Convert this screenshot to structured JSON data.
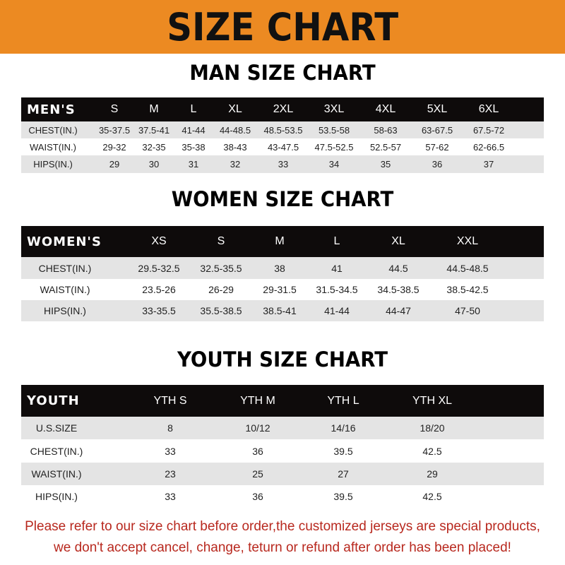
{
  "banner_title": "SIZE CHART",
  "men": {
    "title": "MAN SIZE CHART",
    "header": [
      "MEN'S",
      "S",
      "M",
      "L",
      "XL",
      "2XL",
      "3XL",
      "4XL",
      "5XL",
      "6XL"
    ],
    "rows": [
      [
        "CHEST(IN.)",
        "35-37.5",
        "37.5-41",
        "41-44",
        "44-48.5",
        "48.5-53.5",
        "53.5-58",
        "58-63",
        "63-67.5",
        "67.5-72"
      ],
      [
        "WAIST(IN.)",
        "29-32",
        "32-35",
        "35-38",
        "38-43",
        "43-47.5",
        "47.5-52.5",
        "52.5-57",
        "57-62",
        "62-66.5"
      ],
      [
        "HIPS(IN.)",
        "29",
        "30",
        "31",
        "32",
        "33",
        "34",
        "35",
        "36",
        "37"
      ]
    ]
  },
  "women": {
    "title": "WOMEN SIZE CHART",
    "header": [
      "WOMEN'S",
      "XS",
      "S",
      "M",
      "L",
      "XL",
      "XXL"
    ],
    "rows": [
      [
        "CHEST(IN.)",
        "29.5-32.5",
        "32.5-35.5",
        "38",
        "41",
        "44.5",
        "44.5-48.5"
      ],
      [
        "WAIST(IN.)",
        "23.5-26",
        "26-29",
        "29-31.5",
        "31.5-34.5",
        "34.5-38.5",
        "38.5-42.5"
      ],
      [
        "HIPS(IN.)",
        "33-35.5",
        "35.5-38.5",
        "38.5-41",
        "41-44",
        "44-47",
        "47-50"
      ]
    ]
  },
  "youth": {
    "title": "YOUTH SIZE CHART",
    "header": [
      "YOUTH",
      "YTH S",
      "YTH M",
      "YTH L",
      "YTH XL"
    ],
    "rows": [
      [
        "U.S.SIZE",
        "8",
        "10/12",
        "14/16",
        "18/20"
      ],
      [
        "CHEST(IN.)",
        "33",
        "36",
        "39.5",
        "42.5"
      ],
      [
        "WAIST(IN.)",
        "23",
        "25",
        "27",
        "29"
      ],
      [
        "HIPS(IN.)",
        "33",
        "36",
        "39.5",
        "42.5"
      ]
    ]
  },
  "notice": [
    "Please refer to our size chart before order,the customized jerseys are special products,",
    "we don't accept cancel, change, teturn or refund after order has been placed!"
  ],
  "colors": {
    "banner": "#ec8a22",
    "header_row": "#0e0b0b",
    "stripe": "#e4e4e4",
    "notice": "#b8281e"
  }
}
